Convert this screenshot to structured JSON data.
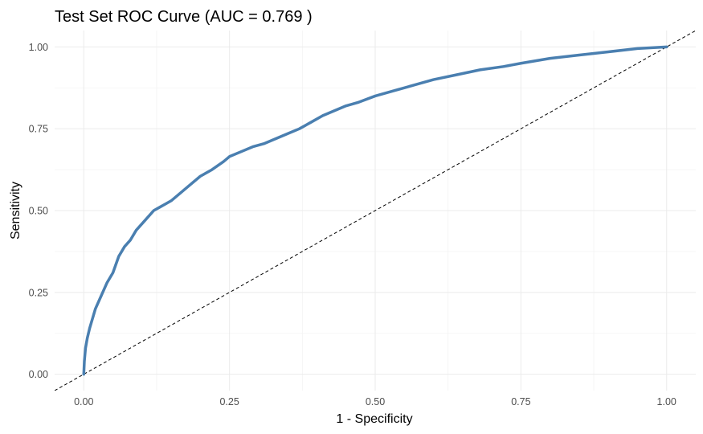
{
  "chart_data": {
    "type": "line",
    "title": "Test Set ROC Curve (AUC = 0.769 )",
    "xlabel": "1 - Specificity",
    "ylabel": "Sensitivity",
    "xlim": [
      -0.05,
      1.05
    ],
    "ylim": [
      -0.05,
      1.05
    ],
    "x_ticks": [
      0,
      0.25,
      0.5,
      0.75,
      1
    ],
    "x_tick_labels": [
      "0.00",
      "0.25",
      "0.50",
      "0.75",
      "1.00"
    ],
    "y_ticks": [
      0,
      0.25,
      0.5,
      0.75,
      1
    ],
    "y_tick_labels": [
      "0.00",
      "0.25",
      "0.50",
      "0.75",
      "1.00"
    ],
    "grid": true,
    "legend": "none",
    "colors": {
      "curve": "#4a7fb0",
      "reference": "#000000"
    },
    "series": [
      {
        "x": [
          0,
          0.001,
          0.003,
          0.006,
          0.01,
          0.015,
          0.02,
          0.03,
          0.04,
          0.05,
          0.06,
          0.07,
          0.08,
          0.09,
          0.1,
          0.11,
          0.12,
          0.13,
          0.14,
          0.15,
          0.16,
          0.18,
          0.2,
          0.22,
          0.24,
          0.25,
          0.27,
          0.29,
          0.31,
          0.33,
          0.35,
          0.37,
          0.39,
          0.41,
          0.43,
          0.45,
          0.47,
          0.5,
          0.53,
          0.56,
          0.6,
          0.64,
          0.68,
          0.72,
          0.75,
          0.8,
          0.85,
          0.9,
          0.95,
          1.0
        ],
        "y": [
          0,
          0.04,
          0.08,
          0.11,
          0.14,
          0.17,
          0.2,
          0.24,
          0.28,
          0.31,
          0.36,
          0.39,
          0.41,
          0.44,
          0.46,
          0.48,
          0.5,
          0.51,
          0.52,
          0.53,
          0.545,
          0.575,
          0.605,
          0.625,
          0.65,
          0.665,
          0.68,
          0.695,
          0.705,
          0.72,
          0.735,
          0.75,
          0.77,
          0.79,
          0.805,
          0.82,
          0.83,
          0.85,
          0.865,
          0.88,
          0.9,
          0.915,
          0.93,
          0.94,
          0.95,
          0.965,
          0.975,
          0.985,
          0.995,
          1.0
        ]
      },
      {
        "x": [
          -0.05,
          1.05
        ],
        "y": [
          -0.05,
          1.05
        ]
      }
    ]
  }
}
